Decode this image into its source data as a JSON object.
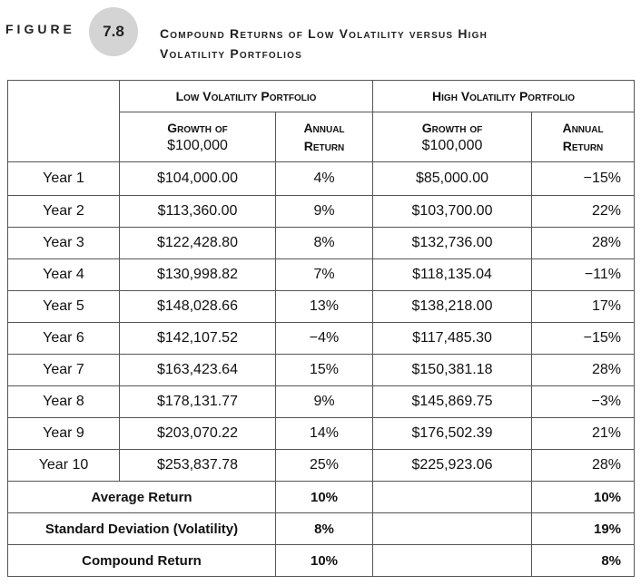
{
  "figure": {
    "label": "FIGURE",
    "number": "7.8",
    "title_line1": "Compound Returns of Low Volatility versus High",
    "title_line2": "Volatility Portfolios"
  },
  "table": {
    "group_headers": [
      "Low Volatility Portfolio",
      "High Volatility Portfolio"
    ],
    "sub_headers": {
      "growth_line1": "Growth of",
      "growth_line2": "$100,000",
      "return_line1": "Annual",
      "return_line2": "Return"
    },
    "rows": [
      {
        "year": "Year 1",
        "low_growth": "$104,000.00",
        "low_return": "4%",
        "high_growth": "$85,000.00",
        "high_return": "−15%"
      },
      {
        "year": "Year 2",
        "low_growth": "$113,360.00",
        "low_return": "9%",
        "high_growth": "$103,700.00",
        "high_return": "22%"
      },
      {
        "year": "Year 3",
        "low_growth": "$122,428.80",
        "low_return": "8%",
        "high_growth": "$132,736.00",
        "high_return": "28%"
      },
      {
        "year": "Year 4",
        "low_growth": "$130,998.82",
        "low_return": "7%",
        "high_growth": "$118,135.04",
        "high_return": "−11%"
      },
      {
        "year": "Year 5",
        "low_growth": "$148,028.66",
        "low_return": "13%",
        "high_growth": "$138,218.00",
        "high_return": "17%"
      },
      {
        "year": "Year 6",
        "low_growth": "$142,107.52",
        "low_return": "−4%",
        "high_growth": "$117,485.30",
        "high_return": "−15%"
      },
      {
        "year": "Year 7",
        "low_growth": "$163,423.64",
        "low_return": "15%",
        "high_growth": "$150,381.18",
        "high_return": "28%"
      },
      {
        "year": "Year 8",
        "low_growth": "$178,131.77",
        "low_return": "9%",
        "high_growth": "$145,869.75",
        "high_return": "−3%"
      },
      {
        "year": "Year 9",
        "low_growth": "$203,070.22",
        "low_return": "14%",
        "high_growth": "$176,502.39",
        "high_return": "21%"
      },
      {
        "year": "Year 10",
        "low_growth": "$253,837.78",
        "low_return": "25%",
        "high_growth": "$225,923.06",
        "high_return": "28%"
      }
    ],
    "summary": [
      {
        "label": "Average Return",
        "low_return": "10%",
        "high_return": "10%"
      },
      {
        "label": "Standard Deviation (Volatility)",
        "low_return": "8%",
        "high_return": "19%"
      },
      {
        "label": "Compound Return",
        "low_return": "10%",
        "high_return": "8%"
      }
    ]
  }
}
